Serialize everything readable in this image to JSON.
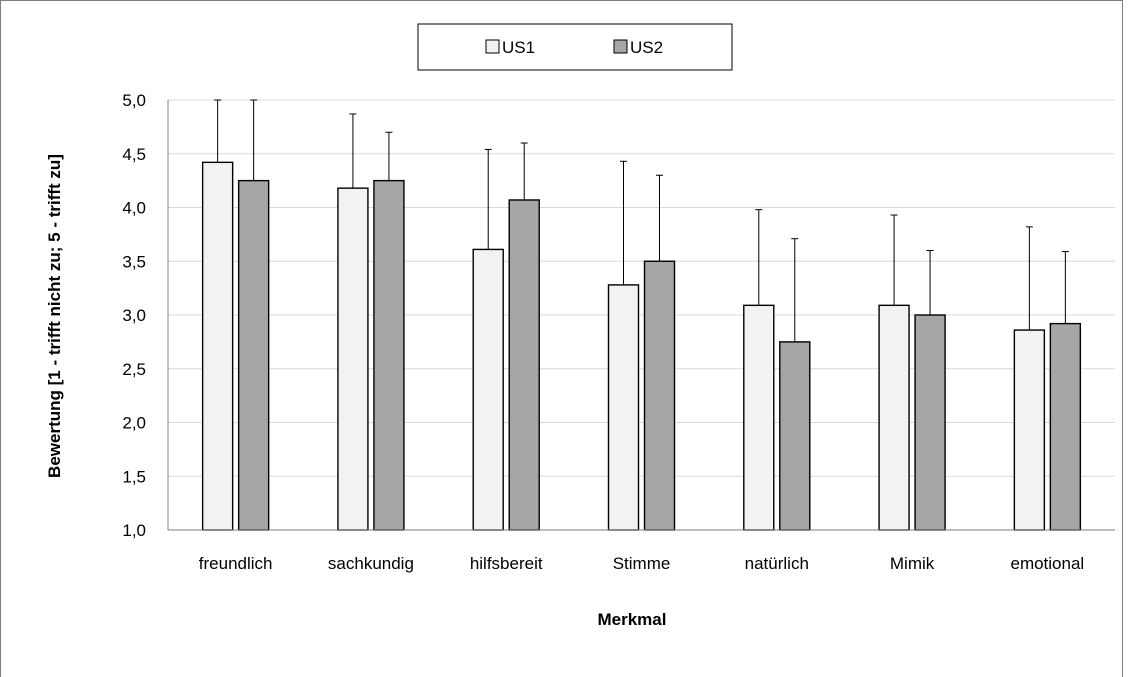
{
  "chart_data": {
    "type": "bar",
    "title": "",
    "xlabel": "Merkmal",
    "ylabel": "Bewertung [1 - trifft nicht zu; 5 - trifft zu]",
    "ylim": [
      1.0,
      5.0
    ],
    "yticks": [
      "1,0",
      "1,5",
      "2,0",
      "2,5",
      "3,0",
      "3,5",
      "4,0",
      "4,5",
      "5,0"
    ],
    "grid": true,
    "legend_position": "top",
    "categories": [
      "freundlich",
      "sachkundig",
      "hilfsbereit",
      "Stimme",
      "natürlich",
      "Mimik",
      "emotional"
    ],
    "series": [
      {
        "name": "US1",
        "color": "#f2f2f2",
        "values": [
          4.42,
          4.18,
          3.61,
          3.28,
          3.09,
          3.09,
          2.86
        ],
        "error_upper": [
          5.0,
          4.87,
          4.54,
          4.43,
          3.98,
          3.93,
          3.82
        ]
      },
      {
        "name": "US2",
        "color": "#a6a6a6",
        "values": [
          4.25,
          4.25,
          4.07,
          3.5,
          2.75,
          3.0,
          2.92
        ],
        "error_upper": [
          5.0,
          4.7,
          4.6,
          4.3,
          3.71,
          3.6,
          3.59
        ]
      }
    ]
  }
}
